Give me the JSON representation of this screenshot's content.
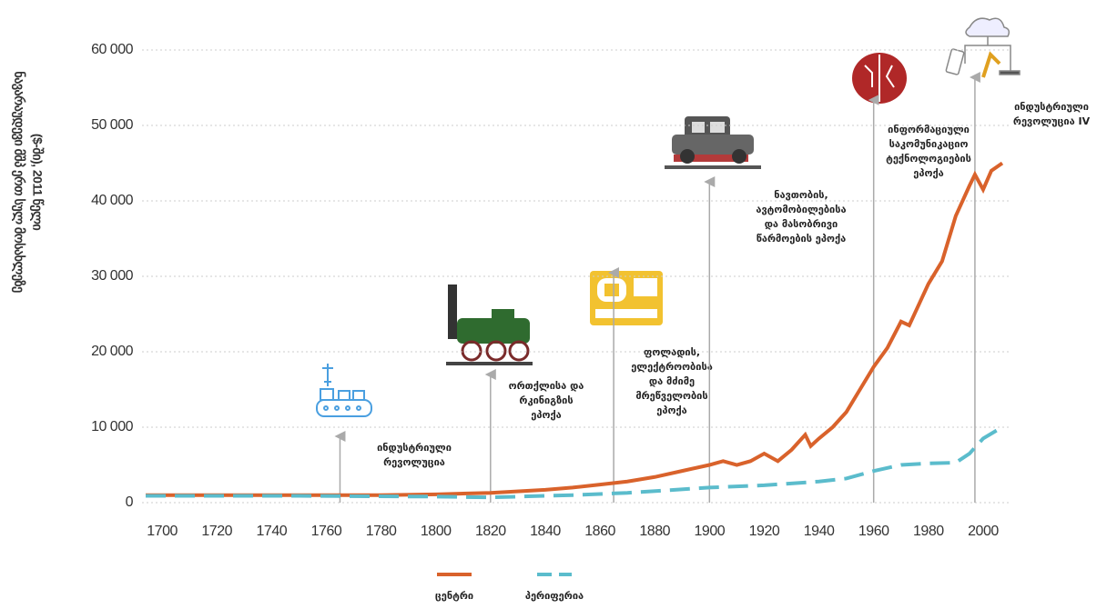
{
  "chart_data": {
    "type": "line",
    "ylabel": [
      "ნავარაუდევი მშპ ერთ სულ მოსახლეზე",
      "($-ში), 2011 წელი"
    ],
    "xlim": [
      1690,
      2010
    ],
    "xticks": [
      1700,
      1720,
      1740,
      1760,
      1780,
      1800,
      1820,
      1840,
      1860,
      1880,
      1900,
      1920,
      1940,
      1960,
      1980,
      2000
    ],
    "ylim": [
      0,
      60000
    ],
    "yticks": [
      0,
      {
        "value": 10000,
        "label": "10 000"
      },
      {
        "value": 20000,
        "label": "20 000"
      },
      {
        "value": 30000,
        "label": "30 000"
      },
      {
        "value": 40000,
        "label": "40 000"
      },
      {
        "value": 50000,
        "label": "50 000"
      },
      {
        "value": 60000,
        "label": "60 000"
      }
    ],
    "grid": true,
    "legend": "bottom",
    "series": [
      {
        "name": "ცენტრი",
        "color": "#d9622b",
        "dash": false,
        "x": [
          1694,
          1720,
          1740,
          1760,
          1780,
          1800,
          1820,
          1840,
          1850,
          1860,
          1870,
          1880,
          1890,
          1900,
          1905,
          1910,
          1915,
          1920,
          1925,
          1930,
          1935,
          1937,
          1940,
          1945,
          1950,
          1955,
          1960,
          1965,
          1970,
          1973,
          1980,
          1985,
          1990,
          1995,
          1997,
          2000,
          2003,
          2007
        ],
        "values": [
          1000,
          1000,
          1000,
          1000,
          1000,
          1100,
          1300,
          1700,
          2000,
          2400,
          2800,
          3400,
          4200,
          5000,
          5500,
          5000,
          5500,
          6500,
          5500,
          7000,
          9000,
          7500,
          8500,
          10000,
          12000,
          15000,
          18000,
          20500,
          24000,
          23500,
          29000,
          32000,
          38000,
          42000,
          43500,
          41500,
          44000,
          45000
        ]
      },
      {
        "name": "პერიფერია",
        "color": "#5bbccc",
        "dash": true,
        "x": [
          1694,
          1750,
          1800,
          1820,
          1850,
          1870,
          1900,
          1920,
          1940,
          1950,
          1960,
          1970,
          1980,
          1990,
          1995,
          2000,
          2006
        ],
        "values": [
          900,
          900,
          800,
          700,
          1000,
          1300,
          2000,
          2300,
          2800,
          3200,
          4200,
          5000,
          5200,
          5300,
          6500,
          8500,
          9800
        ]
      }
    ],
    "annotations": [
      {
        "x": 1765,
        "lines": [
          "ინდუსტრიული",
          "რევოლუცია"
        ]
      },
      {
        "x": 1820,
        "lines": [
          "ორთქლისა და",
          "რკინიგზის",
          "ეპოქა"
        ]
      },
      {
        "x": 1865,
        "lines": [
          "ფოლადის,",
          "ელექტროობისა",
          "და მძიმე",
          "მრეწველობის",
          "ეპოქა"
        ]
      },
      {
        "x": 1900,
        "lines": [
          "ნავთობის,",
          "ავტომობილებისა",
          "და მასობრივი",
          "წარმოების ეპოქა"
        ]
      },
      {
        "x": 1960,
        "lines": [
          "ინფორმაციული",
          "საკომუნიკაციო",
          "ტექნოლოგიების",
          "ეპოქა"
        ]
      },
      {
        "x": 1997,
        "lines": [
          "ინდუსტრიული",
          "რევოლუცია IV"
        ]
      }
    ]
  }
}
